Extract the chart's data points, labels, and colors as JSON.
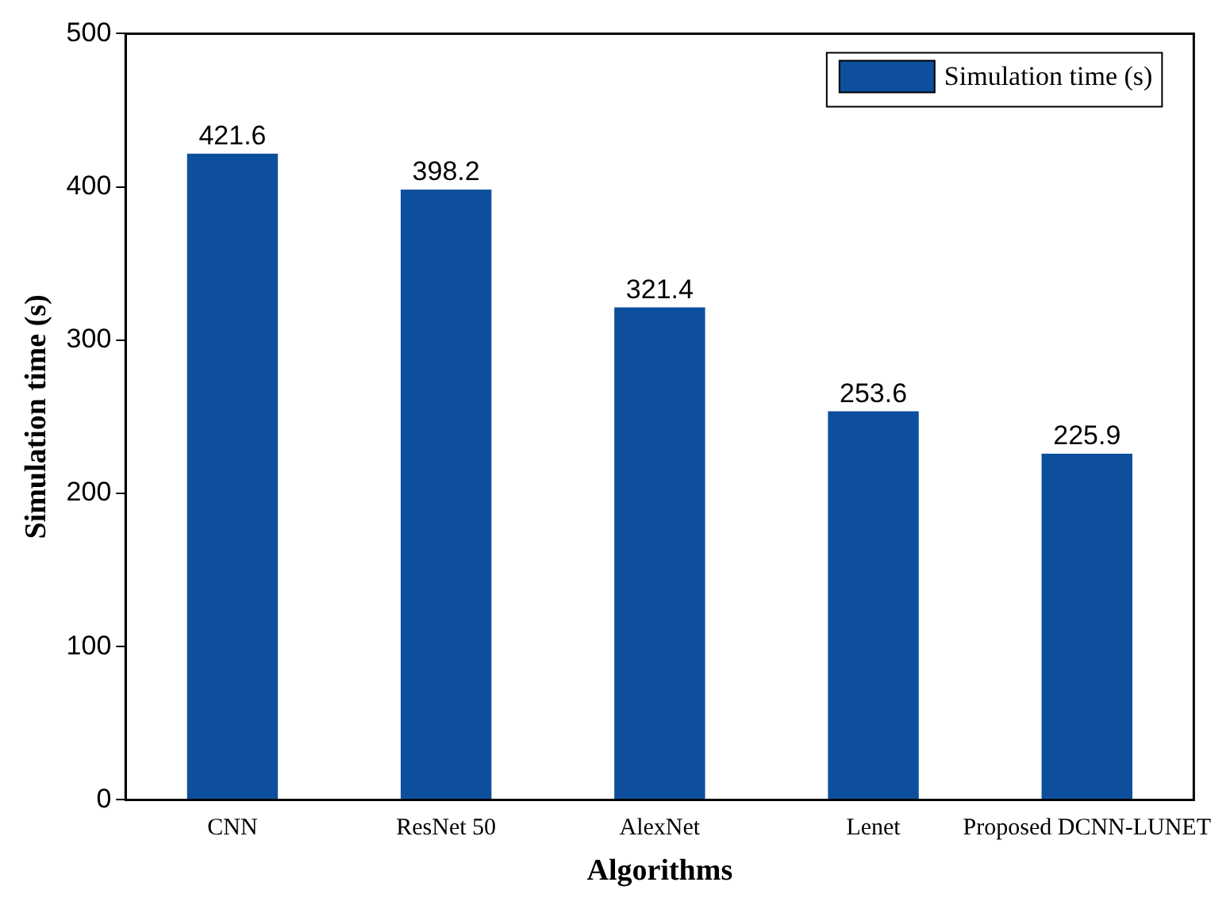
{
  "chart_data": {
    "type": "bar",
    "xlabel": "Algorithms",
    "ylabel": "Simulation time (s)",
    "categories": [
      "CNN",
      "ResNet 50",
      "AlexNet",
      "Lenet",
      "Proposed DCNN-LUNET"
    ],
    "series": [
      {
        "name": "Simulation time (s)",
        "color": "#0d4f9c",
        "values": [
          421.6,
          398.2,
          321.4,
          253.6,
          225.9
        ]
      }
    ],
    "ylim": [
      0,
      500
    ],
    "yticks": [
      0,
      100,
      200,
      300,
      400,
      500
    ],
    "grid": false,
    "legend": "top right",
    "data_labels": true
  }
}
